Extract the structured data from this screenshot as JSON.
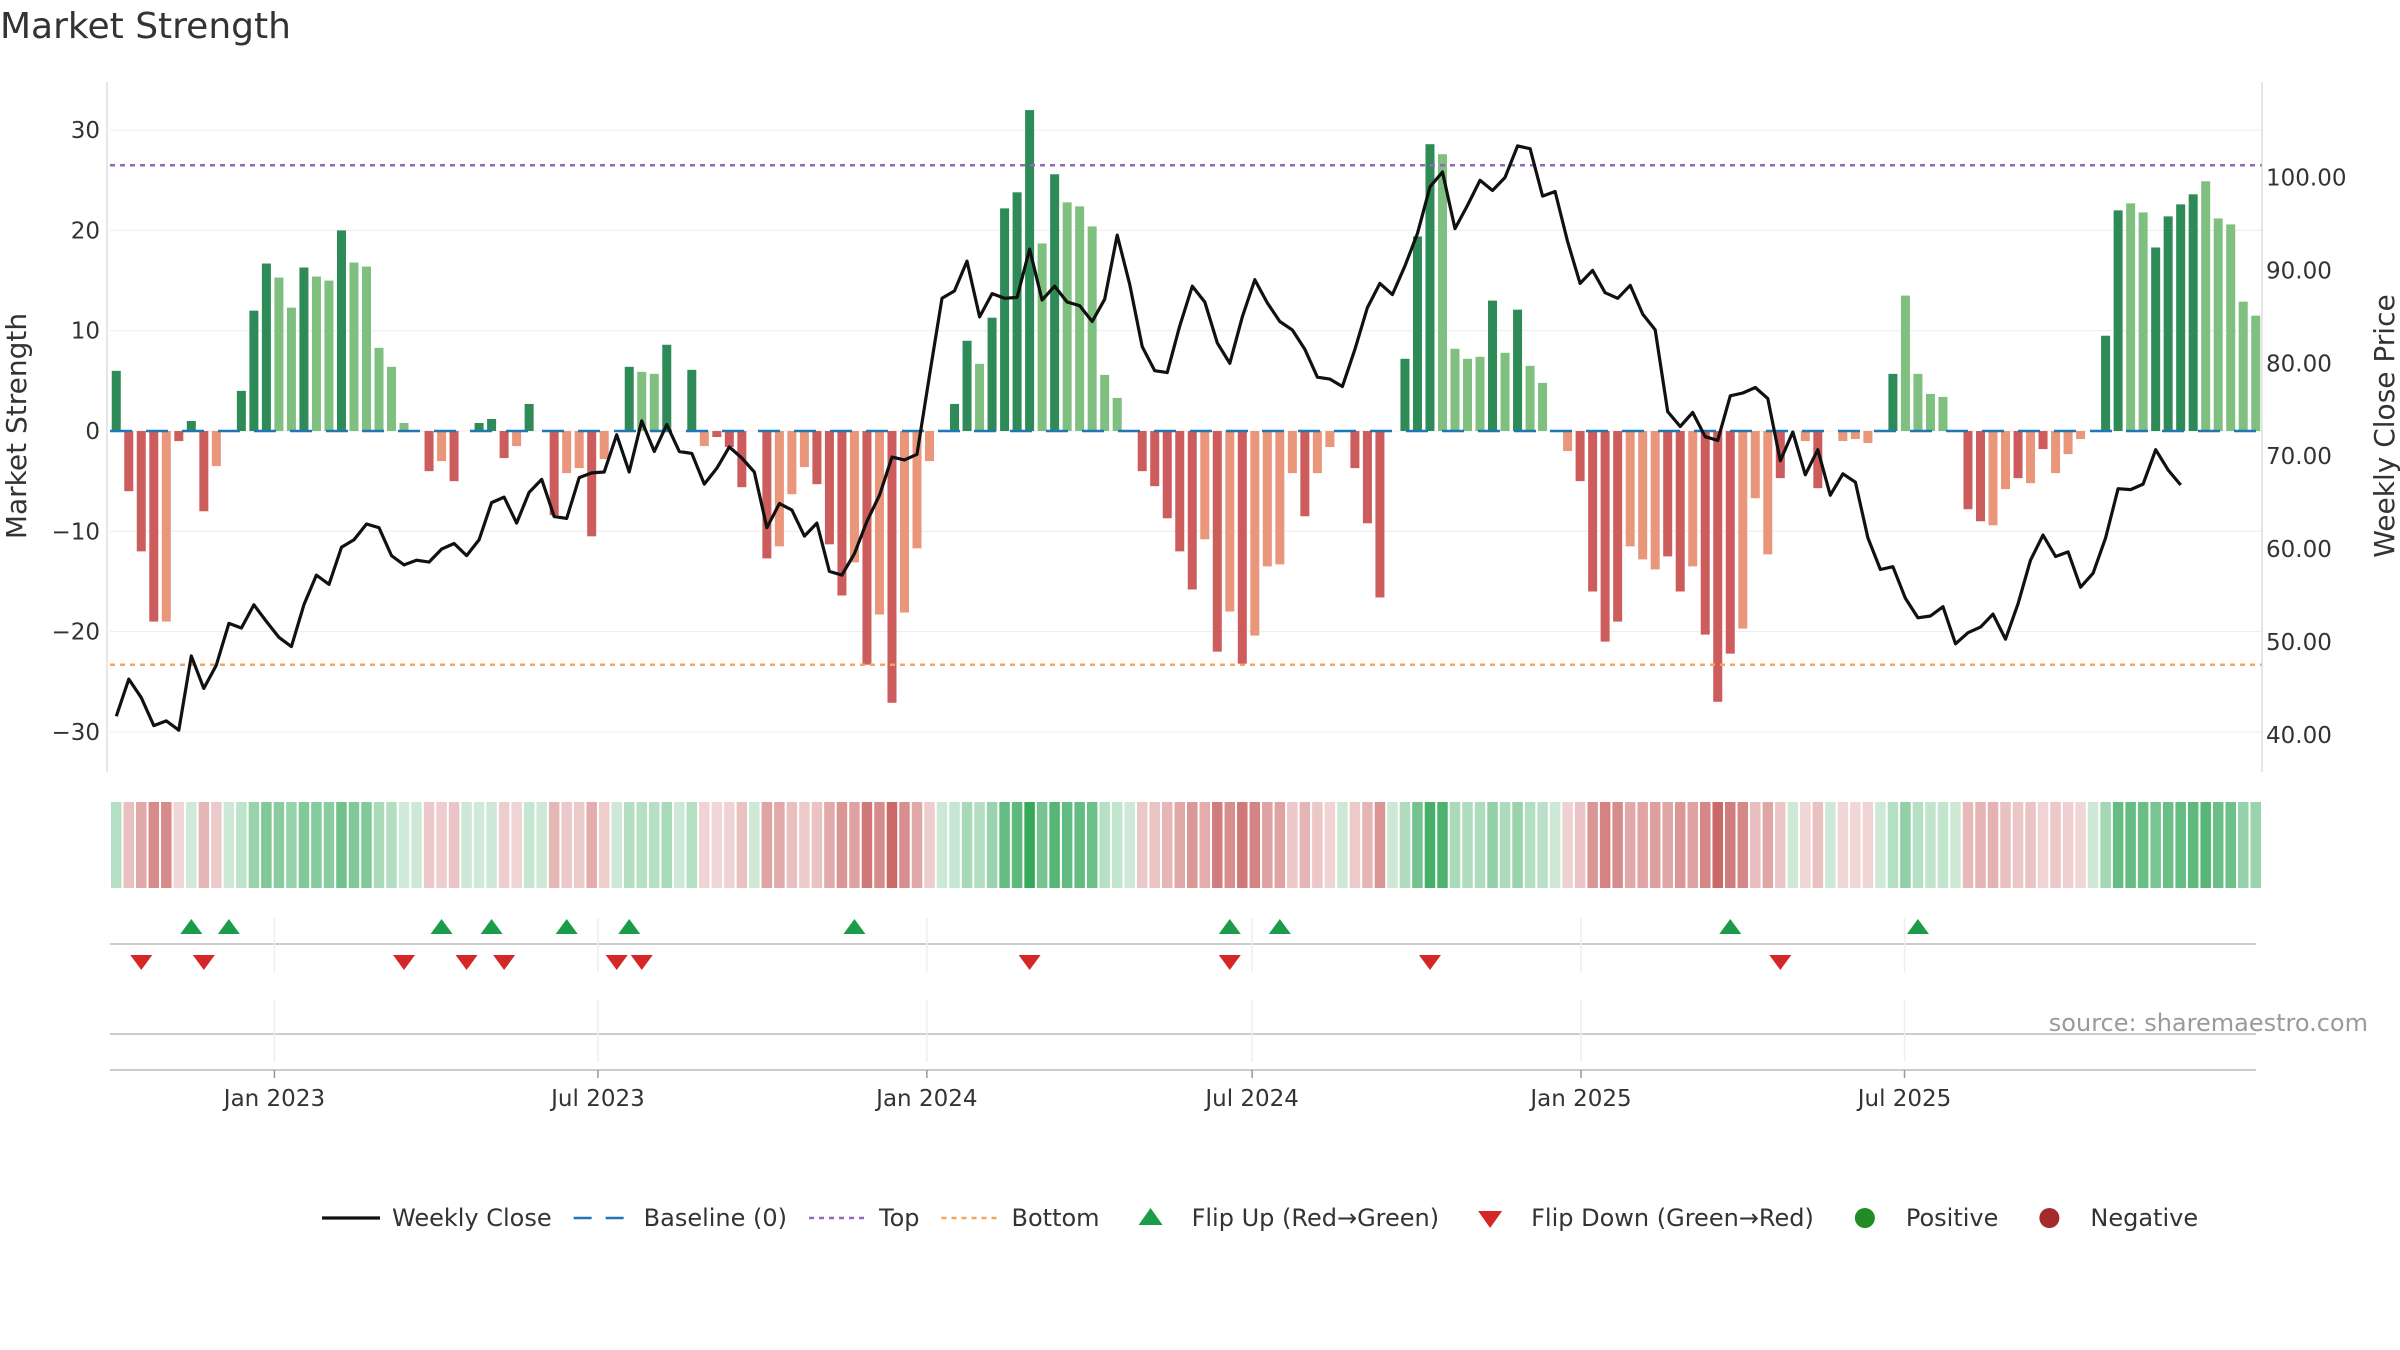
{
  "title": "Market Strength",
  "source": "source: sharemaestro.com",
  "colors": {
    "pos_strong": "#2e8b57",
    "pos_light": "#7fbf7f",
    "neg_strong": "#cd5c5c",
    "neg_light": "#e9967a",
    "price_line": "#111111",
    "baseline": "#1f77b4",
    "top_line": "#9467bd",
    "bottom_line": "#f4a460",
    "flip_up": "#1a9c4a",
    "flip_down": "#d62728",
    "positive_dot": "#228b22",
    "negative_dot": "#a52a2a"
  },
  "chart_data": {
    "type": "bar",
    "title": "Market Strength",
    "ylabel": "Market Strength",
    "y2label": "Weekly Close Price",
    "ylim": [
      -34,
      35
    ],
    "y2lim": [
      36.0,
      110.5
    ],
    "yticks": [
      -30,
      -20,
      -10,
      0,
      10,
      20,
      30
    ],
    "y2ticks": [
      "40.00",
      "50.00",
      "60.00",
      "70.00",
      "80.00",
      "90.00",
      "100.00"
    ],
    "top_level": 26.5,
    "bottom_level": -23.3,
    "x_start": "2022-10-01",
    "x_ticks": [
      {
        "label": "Jan 2023",
        "date": "2023-01-01"
      },
      {
        "label": "Jul 2023",
        "date": "2023-07-01"
      },
      {
        "label": "Jan 2024",
        "date": "2024-01-01"
      },
      {
        "label": "Jul 2024",
        "date": "2024-07-01"
      },
      {
        "label": "Jan 2025",
        "date": "2025-01-01"
      },
      {
        "label": "Jul 2025",
        "date": "2025-07-01"
      }
    ],
    "strength": [
      6,
      -6,
      -12,
      -19,
      -19,
      -1,
      1,
      -8,
      -3.5,
      0,
      4,
      12,
      16.7,
      15.3,
      12.3,
      16.3,
      15.4,
      15,
      20,
      16.8,
      16.4,
      8.3,
      6.4,
      0.8,
      0,
      -4,
      -3,
      -5,
      0,
      0.8,
      1.2,
      -2.7,
      -1.5,
      2.7,
      0,
      -8.4,
      -4.2,
      -3.7,
      -10.5,
      -2.8,
      0,
      6.4,
      5.9,
      5.7,
      8.6,
      0,
      6.1,
      -1.5,
      -0.6,
      -1.6,
      -5.6,
      0,
      -12.7,
      -11.5,
      -6.3,
      -3.6,
      -5.3,
      -11.3,
      -16.4,
      -13.1,
      -23.3,
      -18.3,
      -27.1,
      -18.1,
      -11.7,
      -3,
      0,
      2.7,
      9,
      6.7,
      11.3,
      22.2,
      23.8,
      32,
      18.7,
      25.6,
      22.8,
      22.4,
      20.4,
      5.6,
      3.3,
      0,
      -4,
      -5.5,
      -8.7,
      -12,
      -15.8,
      -10.8,
      -22,
      -18,
      -23.2,
      -20.4,
      -13.5,
      -13.3,
      -4.2,
      -8.5,
      -4.2,
      -1.6,
      0,
      -3.7,
      -9.2,
      -16.6,
      0,
      7.2,
      19.4,
      28.6,
      27.6,
      8.2,
      7.2,
      7.4,
      13,
      7.8,
      12.1,
      6.5,
      4.8,
      0,
      -2,
      -5,
      -16,
      -21,
      -19,
      -11.5,
      -12.8,
      -13.8,
      -12.5,
      -16,
      -13.5,
      -20.3,
      -27,
      -22.2,
      -19.7,
      -6.7,
      -12.3,
      -4.7,
      0,
      -1,
      -5.7,
      0,
      -1,
      -0.8,
      -1.2,
      0,
      5.7,
      13.5,
      5.7,
      3.7,
      3.4,
      0,
      -7.8,
      -9,
      -9.4,
      -5.8,
      -4.7,
      -5.2,
      -1.8,
      -4.2,
      -2.3,
      -0.8,
      0,
      9.5,
      22,
      22.7,
      21.8,
      18.3,
      21.4,
      22.6,
      23.6,
      24.9,
      21.2,
      20.6,
      12.9,
      11.5
    ],
    "strength_shade": [
      1,
      1,
      1,
      1,
      0,
      1,
      1,
      1,
      0,
      0,
      1,
      1,
      1,
      0,
      0,
      1,
      0,
      0,
      1,
      0,
      0,
      0,
      0,
      0,
      0,
      1,
      0,
      1,
      0,
      1,
      1,
      1,
      0,
      1,
      0,
      1,
      0,
      0,
      1,
      0,
      0,
      1,
      0,
      0,
      1,
      0,
      1,
      0,
      1,
      1,
      1,
      0,
      1,
      0,
      0,
      0,
      1,
      1,
      1,
      0,
      1,
      0,
      1,
      0,
      0,
      0,
      0,
      1,
      1,
      0,
      1,
      1,
      1,
      1,
      0,
      1,
      0,
      0,
      0,
      0,
      0,
      0,
      1,
      1,
      1,
      1,
      1,
      0,
      1,
      0,
      1,
      0,
      0,
      0,
      0,
      1,
      0,
      0,
      0,
      1,
      1,
      1,
      0,
      1,
      1,
      1,
      0,
      0,
      0,
      0,
      1,
      0,
      1,
      0,
      0,
      0,
      0,
      1,
      1,
      1,
      1,
      0,
      0,
      0,
      1,
      1,
      0,
      1,
      1,
      1,
      0,
      0,
      0,
      1,
      0,
      0,
      1,
      0,
      0,
      0,
      0,
      1,
      1,
      0,
      0,
      0,
      0,
      1,
      1,
      1,
      0,
      0,
      1,
      0,
      1,
      0,
      0,
      0,
      1,
      1,
      1,
      0,
      0,
      1,
      1,
      1,
      1,
      0,
      0,
      0,
      0
    ],
    "weekly_close": [
      42,
      46,
      44,
      41,
      41.5,
      40.5,
      48.5,
      45,
      47.5,
      52,
      51.5,
      54,
      52.2,
      50.5,
      49.5,
      54,
      57.2,
      56.2,
      60.2,
      61,
      62.7,
      62.3,
      59.3,
      58.3,
      58.8,
      58.6,
      60,
      60.6,
      59.3,
      61,
      65,
      65.6,
      62.8,
      66.1,
      67.5,
      63.5,
      63.3,
      67.7,
      68.2,
      68.3,
      72.3,
      68.3,
      73.8,
      70.5,
      73.4,
      70.5,
      70.3,
      67,
      68.7,
      71,
      69.8,
      68.3,
      62.3,
      64.9,
      64.2,
      61.4,
      62.8,
      57.6,
      57.2,
      59.5,
      63,
      65.8,
      69.9,
      69.6,
      70.2,
      78.7,
      87,
      87.8,
      91,
      85,
      87.5,
      87,
      87.1,
      92.3,
      86.8,
      88.3,
      86.6,
      86.2,
      84.5,
      86.9,
      93.8,
      88.5,
      81.8,
      79.2,
      79,
      84,
      88.3,
      86.6,
      82.2,
      80,
      85,
      89,
      86.5,
      84.5,
      83.6,
      81.5,
      78.5,
      78.3,
      77.5,
      81.5,
      86,
      88.6,
      87.4,
      90.5,
      94,
      99,
      100.6,
      94.5,
      97,
      99.7,
      98.6,
      100,
      103.4,
      103.1,
      98,
      98.5,
      93.1,
      88.6,
      90,
      87.6,
      87,
      88.4,
      85.3,
      83.6,
      74.8,
      73.2,
      74.7,
      72.1,
      71.7,
      76.5,
      76.8,
      77.4,
      76.2,
      69.5,
      72.6,
      68,
      70.7,
      65.8,
      68.1,
      67.2,
      61.2,
      57.8,
      58.1,
      54.7,
      52.6,
      52.8,
      53.8,
      49.8,
      51,
      51.6,
      53,
      50.3,
      54.1,
      58.8,
      61.5,
      59.2,
      59.7,
      55.9,
      57.4,
      61.2,
      66.5,
      66.4,
      67,
      70.7,
      68.5,
      66.9
    ]
  },
  "flip_up_weeks": [
    6,
    9,
    26,
    30,
    36,
    41,
    59,
    89,
    93,
    129,
    144
  ],
  "flip_down_weeks": [
    2,
    7,
    23,
    28,
    31,
    40,
    42,
    73,
    89,
    105,
    133
  ],
  "x_axis_label_extra": "",
  "legend": [
    {
      "label": "Weekly Close",
      "kind": "line"
    },
    {
      "label": "Baseline (0)",
      "kind": "dash"
    },
    {
      "label": "Top",
      "kind": "dot-purple"
    },
    {
      "label": "Bottom",
      "kind": "dot-orange"
    },
    {
      "label": "Flip Up (Red→Green)",
      "kind": "tri-up"
    },
    {
      "label": "Flip Down (Green→Red)",
      "kind": "tri-down"
    },
    {
      "label": "Positive",
      "kind": "dot-green"
    },
    {
      "label": "Negative",
      "kind": "dot-red"
    }
  ]
}
